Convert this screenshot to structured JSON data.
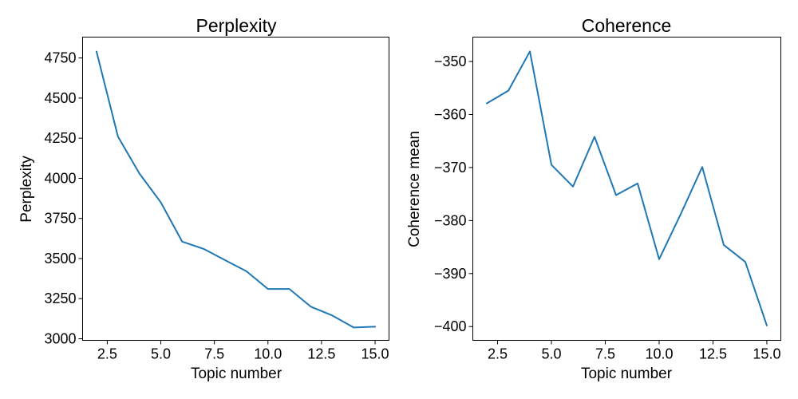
{
  "chart_data": [
    {
      "type": "line",
      "title": "Perplexity",
      "xlabel": "Topic number",
      "ylabel": "Perplexity",
      "xlim": [
        1.35,
        15.65
      ],
      "ylim": [
        2990,
        4880
      ],
      "xticks": [
        2.5,
        5.0,
        7.5,
        10.0,
        12.5,
        15.0
      ],
      "xtick_labels": [
        "2.5",
        "5.0",
        "7.5",
        "10.0",
        "12.5",
        "15.0"
      ],
      "yticks": [
        3000,
        3250,
        3500,
        3750,
        4000,
        4250,
        4500,
        4750
      ],
      "ytick_labels": [
        "3000",
        "3250",
        "3500",
        "3750",
        "4000",
        "4250",
        "4500",
        "4750"
      ],
      "grid": false,
      "color": "#1f77b4",
      "series": [
        {
          "x": [
            2,
            3,
            4,
            5,
            6,
            7,
            8,
            9,
            10,
            11,
            12,
            13,
            14,
            15
          ],
          "values": [
            4790,
            4260,
            4030,
            3850,
            3605,
            3560,
            3490,
            3420,
            3310,
            3310,
            3200,
            3145,
            3070,
            3075
          ]
        }
      ]
    },
    {
      "type": "line",
      "title": "Coherence",
      "xlabel": "Topic number",
      "ylabel": "Coherence mean",
      "xlim": [
        1.35,
        15.65
      ],
      "ylim": [
        -402.6,
        -345.4
      ],
      "xticks": [
        2.5,
        5.0,
        7.5,
        10.0,
        12.5,
        15.0
      ],
      "xtick_labels": [
        "2.5",
        "5.0",
        "7.5",
        "10.0",
        "12.5",
        "15.0"
      ],
      "yticks": [
        -400,
        -390,
        -380,
        -370,
        -360,
        -350
      ],
      "ytick_labels": [
        "−400",
        "−390",
        "−380",
        "−370",
        "−360",
        "−350"
      ],
      "grid": false,
      "color": "#1f77b4",
      "series": [
        {
          "x": [
            2,
            3,
            4,
            5,
            6,
            7,
            8,
            9,
            10,
            11,
            12,
            13,
            14,
            15
          ],
          "values": [
            -357.9,
            -355.5,
            -348.1,
            -369.5,
            -373.6,
            -364.2,
            -375.2,
            -373.0,
            -387.3,
            -378.8,
            -369.9,
            -384.6,
            -387.8,
            -399.8
          ]
        }
      ]
    }
  ]
}
